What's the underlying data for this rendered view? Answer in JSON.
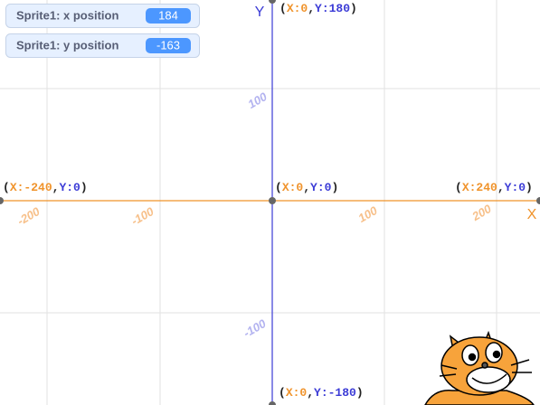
{
  "monitors": [
    {
      "label": "Sprite1: x position",
      "value": 184
    },
    {
      "label": "Sprite1: y position",
      "value": -163
    }
  ],
  "stage": {
    "axis_labels": {
      "x": "X",
      "y": "Y"
    },
    "coordinate_labels": [
      {
        "open": "(",
        "x": "X:0",
        "sep": ",",
        "y": "Y:180",
        "close": ")"
      },
      {
        "open": "(",
        "x": "X:-240",
        "sep": ",",
        "y": "Y:0",
        "close": ")"
      },
      {
        "open": "(",
        "x": "X:0",
        "sep": ",",
        "y": "Y:0",
        "close": ")"
      },
      {
        "open": "(",
        "x": "X:240",
        "sep": ",",
        "y": "Y:0",
        "close": ")"
      },
      {
        "open": "(",
        "x": "X:0",
        "sep": ",",
        "y": "Y:-180",
        "close": ")"
      }
    ],
    "x_tick_labels": [
      -200,
      -100,
      100,
      200
    ],
    "y_tick_labels": [
      100,
      -100
    ]
  }
}
